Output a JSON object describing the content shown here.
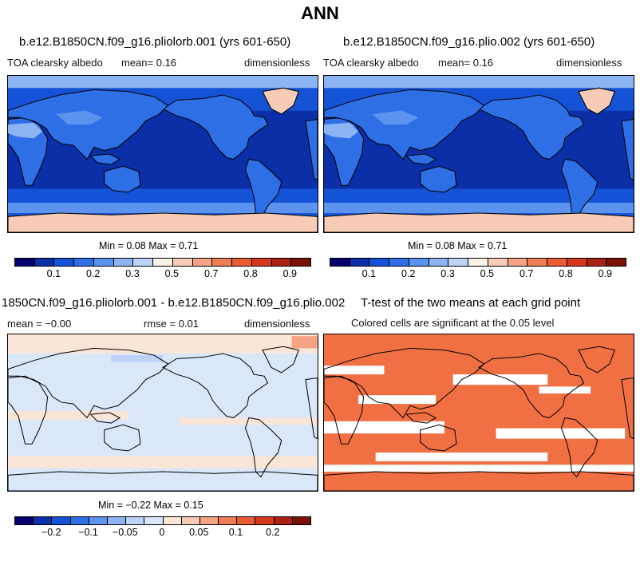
{
  "title": "ANN",
  "colors": {
    "albedo_palette": [
      "#08006f",
      "#0a2fa6",
      "#1553d6",
      "#2e6fe6",
      "#5b93ee",
      "#8cb4f3",
      "#bcd3f7",
      "#f9f0e6",
      "#f8cbb6",
      "#f4a384",
      "#ee7d55",
      "#e95b31",
      "#d6381d",
      "#ab2214",
      "#7a1108"
    ],
    "diff_palette": [
      "#08006f",
      "#0a2fa6",
      "#1553d6",
      "#2e6fe6",
      "#5b93ee",
      "#8cb4f3",
      "#bcd3f7",
      "#d9e7f8",
      "#fbe5d6",
      "#f8cbb6",
      "#f4a384",
      "#ee7d55",
      "#e95b31",
      "#d6381d",
      "#ab2214",
      "#7a1108"
    ],
    "significant": "#f07043",
    "coast": "#000000"
  },
  "panels": {
    "p1": {
      "title": "b.e12.B1850CN.f09_g16.pliolorb.001 (yrs 601-650)",
      "var": "TOA clearsky albedo",
      "mean": "mean=   0.16",
      "units": "dimensionless",
      "minmax": "Min =   0.08 Max =   0.71",
      "ticks": [
        "0.1",
        "0.2",
        "0.3",
        "0.5",
        "0.7",
        "0.8",
        "0.9"
      ]
    },
    "p2": {
      "title": "b.e12.B1850CN.f09_g16.plio.002 (yrs 601-650)",
      "var": "TOA clearsky albedo",
      "mean": "mean=   0.16",
      "units": "dimensionless",
      "minmax": "Min =   0.08 Max =   0.71",
      "ticks": [
        "0.1",
        "0.2",
        "0.3",
        "0.5",
        "0.7",
        "0.8",
        "0.9"
      ]
    },
    "p3": {
      "title": "1850CN.f09_g16.pliolorb.001 - b.e12.B1850CN.f09_g16.plio.002",
      "mean": "mean =  −0.00",
      "rmse": "rmse =   0.01",
      "units": "dimensionless",
      "minmax": "Min =  −0.22 Max =   0.15",
      "ticks": [
        "−0.2",
        "−0.1",
        "−0.05",
        "0",
        "0.05",
        "0.1",
        "0.2"
      ]
    },
    "p4": {
      "title": "T-test of the two means at each grid point",
      "note": "Colored cells are significant at the 0.05 level"
    }
  }
}
